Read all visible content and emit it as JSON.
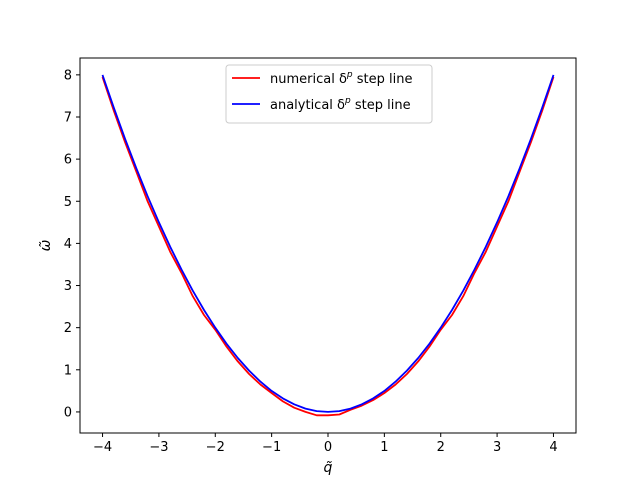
{
  "chart_data": {
    "type": "line",
    "title": "",
    "xlabel": "q̃",
    "ylabel": "ω̃",
    "xlim": [
      -4.4,
      4.4
    ],
    "ylim": [
      -0.5,
      8.4
    ],
    "xticks": [
      -4,
      -3,
      -2,
      -1,
      0,
      1,
      2,
      3,
      4
    ],
    "yticks": [
      0,
      1,
      2,
      3,
      4,
      5,
      6,
      7,
      8
    ],
    "xtick_labels": [
      "−4",
      "−3",
      "−2",
      "−1",
      "0",
      "1",
      "2",
      "3",
      "4"
    ],
    "ytick_labels": [
      "0",
      "1",
      "2",
      "3",
      "4",
      "5",
      "6",
      "7",
      "8"
    ],
    "grid": false,
    "legend": {
      "location": "top-center",
      "entries": [
        {
          "label": "numerical δ",
          "sup": "p",
          "suffix": " step line",
          "color": "#ff0000"
        },
        {
          "label": "analytical δ",
          "sup": "p",
          "suffix": " step line",
          "color": "#0000ff"
        }
      ]
    },
    "series": [
      {
        "name": "numerical δp step line",
        "color": "#ff0000",
        "x": [
          -4.0,
          -3.8,
          -3.6,
          -3.4,
          -3.2,
          -3.0,
          -2.8,
          -2.6,
          -2.4,
          -2.2,
          -2.0,
          -1.8,
          -1.6,
          -1.4,
          -1.2,
          -1.0,
          -0.8,
          -0.6,
          -0.4,
          -0.2,
          0.0,
          0.2,
          0.4,
          0.6,
          0.8,
          1.0,
          1.2,
          1.4,
          1.6,
          1.8,
          2.0,
          2.2,
          2.4,
          2.6,
          2.8,
          3.0,
          3.2,
          3.4,
          3.6,
          3.8,
          4.0
        ],
        "y": [
          7.95,
          7.15,
          6.4,
          5.7,
          5.0,
          4.4,
          3.8,
          3.3,
          2.75,
          2.3,
          1.95,
          1.55,
          1.2,
          0.9,
          0.65,
          0.45,
          0.25,
          0.1,
          0.0,
          -0.08,
          -0.08,
          -0.06,
          0.05,
          0.15,
          0.28,
          0.45,
          0.65,
          0.9,
          1.2,
          1.55,
          1.95,
          2.3,
          2.75,
          3.3,
          3.8,
          4.4,
          5.0,
          5.7,
          6.4,
          7.15,
          7.95
        ]
      },
      {
        "name": "analytical δp step line",
        "color": "#0000ff",
        "x": [
          -4.0,
          -3.8,
          -3.6,
          -3.4,
          -3.2,
          -3.0,
          -2.8,
          -2.6,
          -2.4,
          -2.2,
          -2.0,
          -1.8,
          -1.6,
          -1.4,
          -1.2,
          -1.0,
          -0.8,
          -0.6,
          -0.4,
          -0.2,
          0.0,
          0.2,
          0.4,
          0.6,
          0.8,
          1.0,
          1.2,
          1.4,
          1.6,
          1.8,
          2.0,
          2.2,
          2.4,
          2.6,
          2.8,
          3.0,
          3.2,
          3.4,
          3.6,
          3.8,
          4.0
        ],
        "y": [
          8.0,
          7.22,
          6.48,
          5.78,
          5.12,
          4.5,
          3.92,
          3.38,
          2.88,
          2.42,
          2.0,
          1.62,
          1.28,
          0.98,
          0.72,
          0.5,
          0.32,
          0.18,
          0.08,
          0.02,
          0.0,
          0.02,
          0.08,
          0.18,
          0.32,
          0.5,
          0.72,
          0.98,
          1.28,
          1.62,
          2.0,
          2.42,
          2.88,
          3.38,
          3.92,
          4.5,
          5.12,
          5.78,
          6.48,
          7.22,
          8.0
        ]
      }
    ]
  }
}
